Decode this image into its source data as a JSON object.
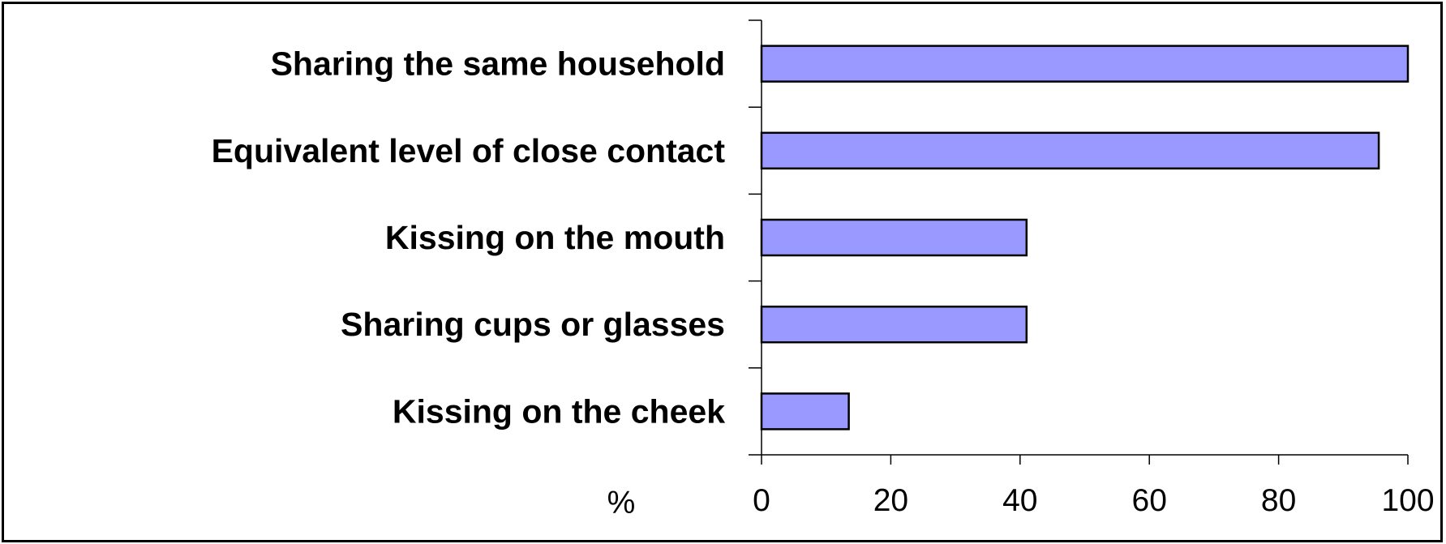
{
  "chart_data": {
    "type": "bar",
    "orientation": "horizontal",
    "categories": [
      "Sharing the same household",
      "Equivalent level of close contact",
      "Kissing on the mouth",
      "Sharing cups or glasses",
      "Kissing on the cheek"
    ],
    "values": [
      100,
      95.5,
      41,
      41,
      13.5
    ],
    "xlabel": "%",
    "ylabel": "",
    "title": "",
    "xlim": [
      0,
      100
    ],
    "xticks": [
      "0",
      "20",
      "40",
      "60",
      "80",
      "100"
    ],
    "grid": false,
    "legend": "none",
    "colors": {
      "bar_fill": "#9999ff",
      "bar_stroke": "#000000",
      "axis": "#000000",
      "frame": "#000000"
    }
  }
}
